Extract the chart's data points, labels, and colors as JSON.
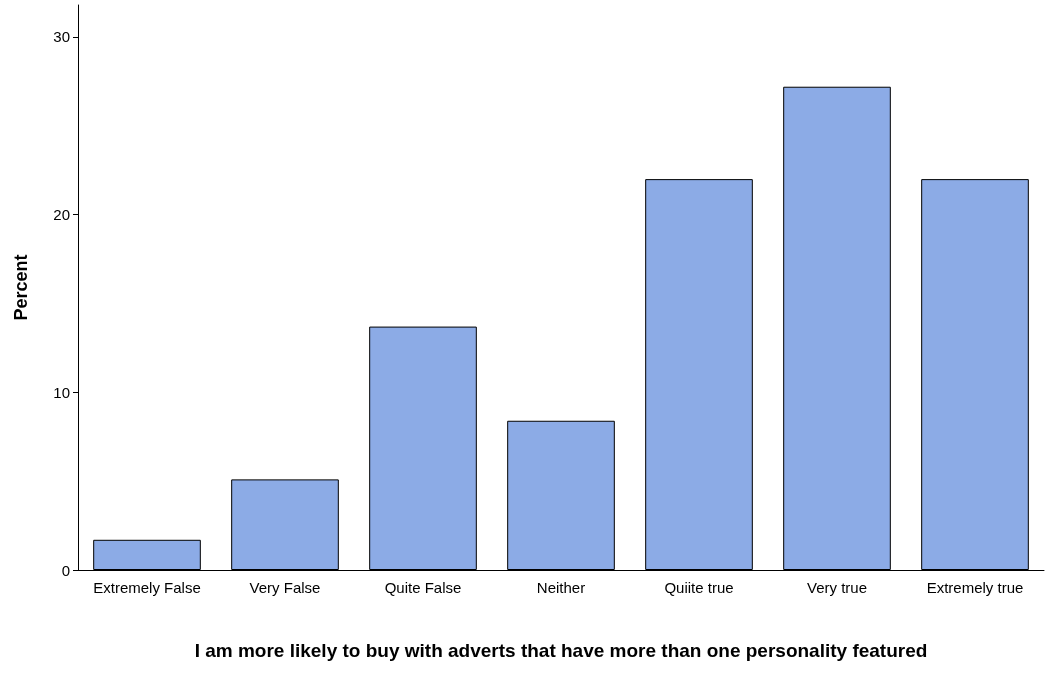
{
  "chart_data": {
    "type": "bar",
    "xlabel": "I am more likely to buy with adverts that have more than one personality featured",
    "ylabel": "Percent",
    "categories": [
      "Extremely False",
      "Very False",
      "Quite False",
      "Neither",
      "Quiite true",
      "Very true",
      "Extremely true"
    ],
    "values": [
      1.7,
      5.1,
      13.7,
      8.4,
      22.0,
      27.2,
      22.0
    ],
    "color": "#8cabe6",
    "ylim": [
      0,
      31.8
    ],
    "yticks": [
      0,
      10,
      20,
      30
    ],
    "grid": false
  }
}
